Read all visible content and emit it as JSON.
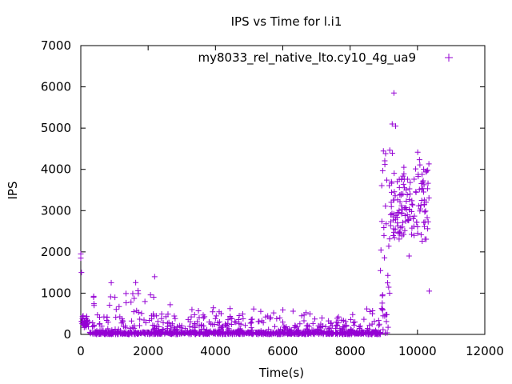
{
  "chart_data": {
    "type": "scatter",
    "title": "IPS vs Time for l.i1",
    "xlabel": "Time(s)",
    "ylabel": "IPS",
    "xlim": [
      0,
      12000
    ],
    "ylim": [
      0,
      7000
    ],
    "x_ticks": [
      "0",
      "2000",
      "4000",
      "6000",
      "8000",
      "10000",
      "12000"
    ],
    "y_ticks": [
      "0",
      "1000",
      "2000",
      "3000",
      "4000",
      "5000",
      "6000",
      "7000"
    ],
    "grid": false,
    "legend_position": "top-right",
    "series": [
      {
        "name": "my8033_rel_native_lto.cy10_4g_ua9",
        "color": "#9400d3",
        "marker": "plus",
        "segments": [
          {
            "x_start": 0,
            "x_end": 250,
            "y_low": 100,
            "y_high": 500
          },
          {
            "x_start": 250,
            "x_end": 700,
            "y_low": 0,
            "y_high": 1300
          },
          {
            "x_start": 700,
            "x_end": 2200,
            "y_low": 0,
            "y_high": 1500
          },
          {
            "x_start": 2200,
            "x_end": 3500,
            "y_low": 0,
            "y_high": 800
          },
          {
            "x_start": 3500,
            "x_end": 8900,
            "y_low": 0,
            "y_high": 700
          },
          {
            "x_start": 8900,
            "x_end": 9200,
            "y_low": 0,
            "y_high": 4500
          },
          {
            "x_start": 9200,
            "x_end": 10350,
            "y_low": 1900,
            "y_high": 4500
          }
        ],
        "outliers": [
          {
            "x": 0,
            "y": 1950
          },
          {
            "x": 0,
            "y": 1850
          },
          {
            "x": 20,
            "y": 1500
          },
          {
            "x": 9300,
            "y": 5850
          },
          {
            "x": 9250,
            "y": 5100
          },
          {
            "x": 9350,
            "y": 5050
          },
          {
            "x": 10350,
            "y": 1050
          },
          {
            "x": 9750,
            "y": 1900
          }
        ]
      }
    ]
  }
}
